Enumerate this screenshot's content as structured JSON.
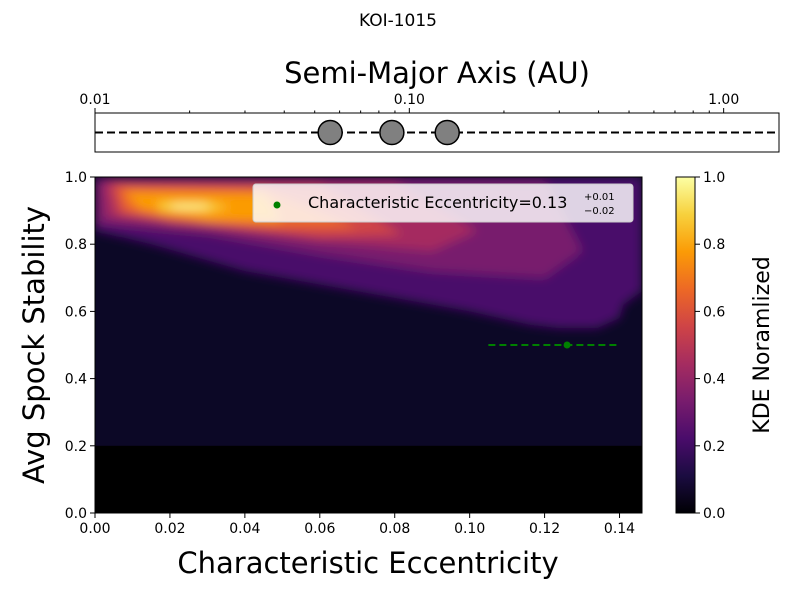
{
  "chart_data": [
    {
      "type": "line",
      "panel": "top-strip",
      "title": "Semi-Major Axis (AU)",
      "xscale": "log",
      "xlim": [
        0.01,
        1.5
      ],
      "xticks": [
        0.01,
        0.1,
        1.0
      ],
      "xtick_labels": [
        "0.01",
        "0.10",
        "1.00"
      ],
      "planets_au": [
        0.056,
        0.088,
        0.132
      ],
      "colors": {
        "planet_fill": "#808080",
        "line": "#000000"
      }
    },
    {
      "type": "heatmap",
      "panel": "main",
      "suptitle": "KOI-1015",
      "xlabel": "Characteristic Eccentricity",
      "ylabel": "Avg Spock Stability",
      "xlim": [
        0.0,
        0.146
      ],
      "ylim": [
        0.0,
        1.0
      ],
      "xticks": [
        0.0,
        0.02,
        0.04,
        0.06,
        0.08,
        0.1,
        0.12,
        0.14
      ],
      "xtick_labels": [
        "0.00",
        "0.02",
        "0.04",
        "0.06",
        "0.08",
        "0.10",
        "0.12",
        "0.14"
      ],
      "yticks": [
        0.0,
        0.2,
        0.4,
        0.6,
        0.8,
        1.0
      ],
      "ytick_labels": [
        "0.0",
        "0.2",
        "0.4",
        "0.6",
        "0.8",
        "1.0"
      ],
      "kde_peak": {
        "x": 0.027,
        "y": 0.91
      },
      "stability_floor": 0.2,
      "characteristic_point": {
        "x": 0.126,
        "y": 0.5,
        "xerr_low": 0.021,
        "xerr_high": 0.014
      },
      "legend": {
        "placement": "top-right",
        "label_main": "Characteristic Eccentricity=0.13",
        "sup": "+0.01",
        "sub": "−0.02"
      },
      "colorbar": {
        "label": "KDE Noramlized",
        "ticks": [
          0.0,
          0.2,
          0.4,
          0.6,
          0.8,
          1.0
        ],
        "tick_labels": [
          "0.0",
          "0.2",
          "0.4",
          "0.6",
          "0.8",
          "1.0"
        ],
        "colormap": "inferno",
        "colors": [
          "#000004",
          "#1b0c41",
          "#4a0c6b",
          "#781c6d",
          "#a52c60",
          "#cf4446",
          "#ed6925",
          "#fb9b06",
          "#f7d13d",
          "#fcffa4"
        ]
      },
      "colors": {
        "point": "#008000",
        "floor": "#000000",
        "background": "#0c0826"
      }
    }
  ]
}
